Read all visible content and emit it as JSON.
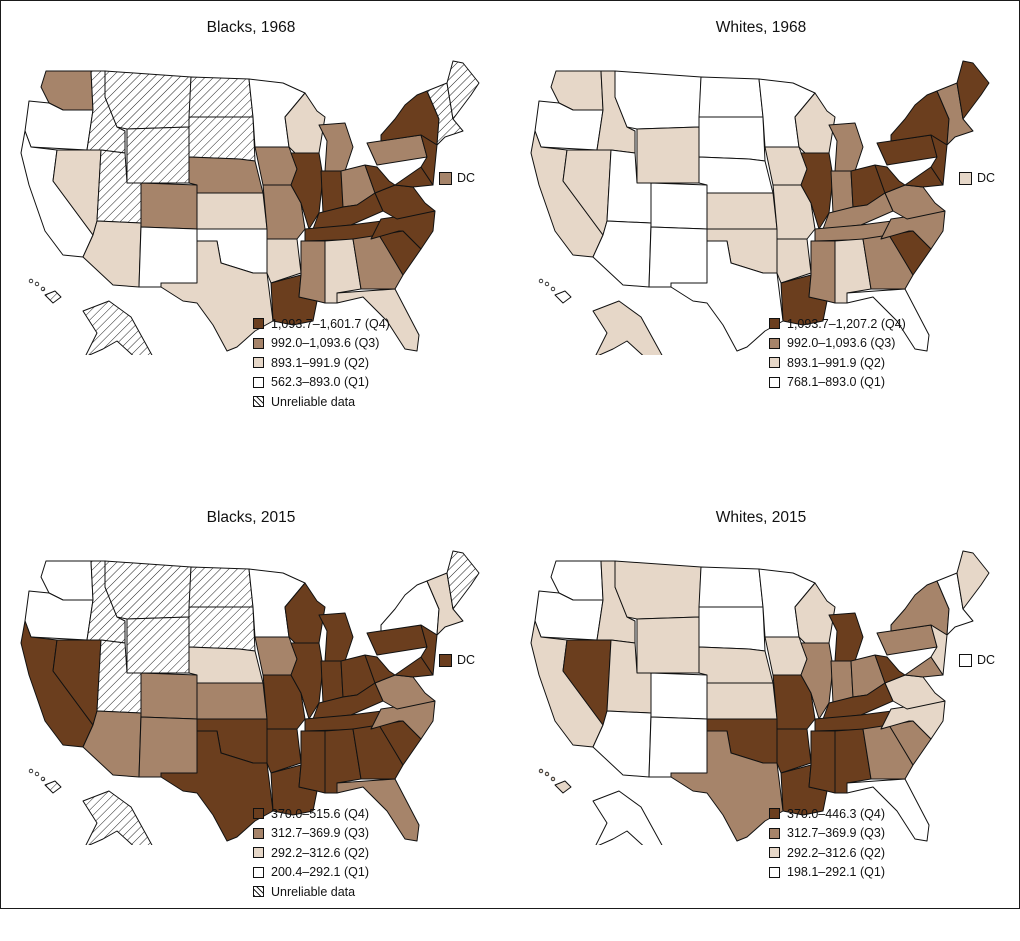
{
  "colors": {
    "Q4": "#6b3e1e",
    "Q3": "#a6846a",
    "Q2": "#e6d7c8",
    "Q1": "#ffffff",
    "unreliable": "hatched"
  },
  "dc_label": "DC",
  "panels": [
    {
      "title": "Blacks, 1968",
      "dc_class": "Q3",
      "legend": [
        {
          "class": "Q4",
          "label": "1,093.7–1,601.7 (Q4)"
        },
        {
          "class": "Q3",
          "label": "992.0–1,093.6 (Q3)"
        },
        {
          "class": "Q2",
          "label": "893.1–991.9 (Q2)"
        },
        {
          "class": "Q1",
          "label": "562.3–893.0 (Q1)"
        },
        {
          "class": "unreliable",
          "label": "Unreliable data"
        }
      ],
      "states": {
        "WA": "Q3",
        "OR": "Q1",
        "CA": "Q1",
        "NV": "Q2",
        "ID": "unreliable",
        "MT": "unreliable",
        "WY": "unreliable",
        "UT": "unreliable",
        "CO": "Q3",
        "AZ": "Q2",
        "NM": "Q1",
        "ND": "unreliable",
        "SD": "unreliable",
        "NE": "Q3",
        "KS": "Q2",
        "OK": "Q1",
        "TX": "Q2",
        "MN": "Q1",
        "IA": "Q3",
        "MO": "Q3",
        "AR": "Q2",
        "LA": "Q4",
        "WI": "Q2",
        "IL": "Q4",
        "MI": "Q3",
        "IN": "Q4",
        "OH": "Q3",
        "KY": "Q4",
        "TN": "Q4",
        "MS": "Q3",
        "AL": "Q2",
        "GA": "Q3",
        "FL": "Q2",
        "SC": "Q4",
        "NC": "Q4",
        "VA": "Q4",
        "WV": "Q4",
        "PA": "Q3",
        "NY": "Q4",
        "ME": "unreliable",
        "NE_states": "unreliable",
        "MD": "Q4",
        "NJ": "Q4",
        "AK": "unreliable",
        "HI": "unreliable"
      }
    },
    {
      "title": "Whites, 1968",
      "dc_class": "Q2",
      "legend": [
        {
          "class": "Q4",
          "label": "1,093.7–1,207.2 (Q4)"
        },
        {
          "class": "Q3",
          "label": "992.0–1,093.6 (Q3)"
        },
        {
          "class": "Q2",
          "label": "893.1–991.9 (Q2)"
        },
        {
          "class": "Q1",
          "label": "768.1–893.0 (Q1)"
        }
      ],
      "states": {
        "WA": "Q2",
        "OR": "Q1",
        "CA": "Q2",
        "NV": "Q2",
        "ID": "Q2",
        "MT": "Q1",
        "WY": "Q2",
        "UT": "Q1",
        "CO": "Q1",
        "AZ": "Q1",
        "NM": "Q1",
        "ND": "Q1",
        "SD": "Q1",
        "NE": "Q1",
        "KS": "Q2",
        "OK": "Q2",
        "TX": "Q1",
        "MN": "Q1",
        "IA": "Q2",
        "MO": "Q2",
        "AR": "Q2",
        "LA": "Q4",
        "WI": "Q2",
        "IL": "Q4",
        "MI": "Q3",
        "IN": "Q3",
        "OH": "Q4",
        "KY": "Q3",
        "TN": "Q3",
        "MS": "Q3",
        "AL": "Q2",
        "GA": "Q3",
        "FL": "Q1",
        "SC": "Q4",
        "NC": "Q3",
        "VA": "Q3",
        "WV": "Q4",
        "PA": "Q4",
        "NY": "Q4",
        "ME": "Q4",
        "NE_states": "Q3",
        "MD": "Q4",
        "NJ": "Q4",
        "AK": "Q2",
        "HI": "Q1"
      }
    },
    {
      "title": "Blacks, 2015",
      "dc_class": "Q4",
      "legend": [
        {
          "class": "Q4",
          "label": "370.0–515.6 (Q4)"
        },
        {
          "class": "Q3",
          "label": "312.7–369.9 (Q3)"
        },
        {
          "class": "Q2",
          "label": "292.2–312.6 (Q2)"
        },
        {
          "class": "Q1",
          "label": "200.4–292.1 (Q1)"
        },
        {
          "class": "unreliable",
          "label": "Unreliable data"
        }
      ],
      "states": {
        "WA": "Q1",
        "OR": "Q1",
        "CA": "Q4",
        "NV": "Q4",
        "ID": "unreliable",
        "MT": "unreliable",
        "WY": "unreliable",
        "UT": "unreliable",
        "CO": "Q3",
        "AZ": "Q3",
        "NM": "Q3",
        "ND": "unreliable",
        "SD": "unreliable",
        "NE": "Q2",
        "KS": "Q3",
        "OK": "Q4",
        "TX": "Q4",
        "MN": "Q1",
        "IA": "Q3",
        "MO": "Q4",
        "AR": "Q4",
        "LA": "Q4",
        "WI": "Q4",
        "IL": "Q4",
        "MI": "Q4",
        "IN": "Q4",
        "OH": "Q4",
        "KY": "Q4",
        "TN": "Q4",
        "MS": "Q4",
        "AL": "Q4",
        "GA": "Q4",
        "FL": "Q3",
        "SC": "Q4",
        "NC": "Q3",
        "VA": "Q3",
        "WV": "Q4",
        "PA": "Q4",
        "NY": "Q1",
        "ME": "unreliable",
        "NE_states": "Q2",
        "MD": "Q4",
        "NJ": "Q4",
        "AK": "unreliable",
        "HI": "unreliable"
      }
    },
    {
      "title": "Whites, 2015",
      "dc_class": "Q1",
      "legend": [
        {
          "class": "Q4",
          "label": "370.0–446.3 (Q4)"
        },
        {
          "class": "Q3",
          "label": "312.7–369.9 (Q3)"
        },
        {
          "class": "Q2",
          "label": "292.2–312.6 (Q2)"
        },
        {
          "class": "Q1",
          "label": "198.1–292.1 (Q1)"
        }
      ],
      "states": {
        "WA": "Q1",
        "OR": "Q1",
        "CA": "Q2",
        "NV": "Q4",
        "ID": "Q2",
        "MT": "Q2",
        "WY": "Q2",
        "UT": "Q2",
        "CO": "Q1",
        "AZ": "Q1",
        "NM": "Q1",
        "ND": "Q1",
        "SD": "Q1",
        "NE": "Q2",
        "KS": "Q2",
        "OK": "Q4",
        "TX": "Q3",
        "MN": "Q1",
        "IA": "Q2",
        "MO": "Q4",
        "AR": "Q4",
        "LA": "Q4",
        "WI": "Q2",
        "IL": "Q3",
        "MI": "Q4",
        "IN": "Q3",
        "OH": "Q3",
        "KY": "Q4",
        "TN": "Q4",
        "MS": "Q4",
        "AL": "Q4",
        "GA": "Q3",
        "FL": "Q1",
        "SC": "Q3",
        "NC": "Q2",
        "VA": "Q2",
        "WV": "Q4",
        "PA": "Q3",
        "NY": "Q3",
        "ME": "Q2",
        "NE_states": "Q1",
        "MD": "Q3",
        "NJ": "Q2",
        "AK": "Q1",
        "HI": "Q2"
      }
    }
  ]
}
